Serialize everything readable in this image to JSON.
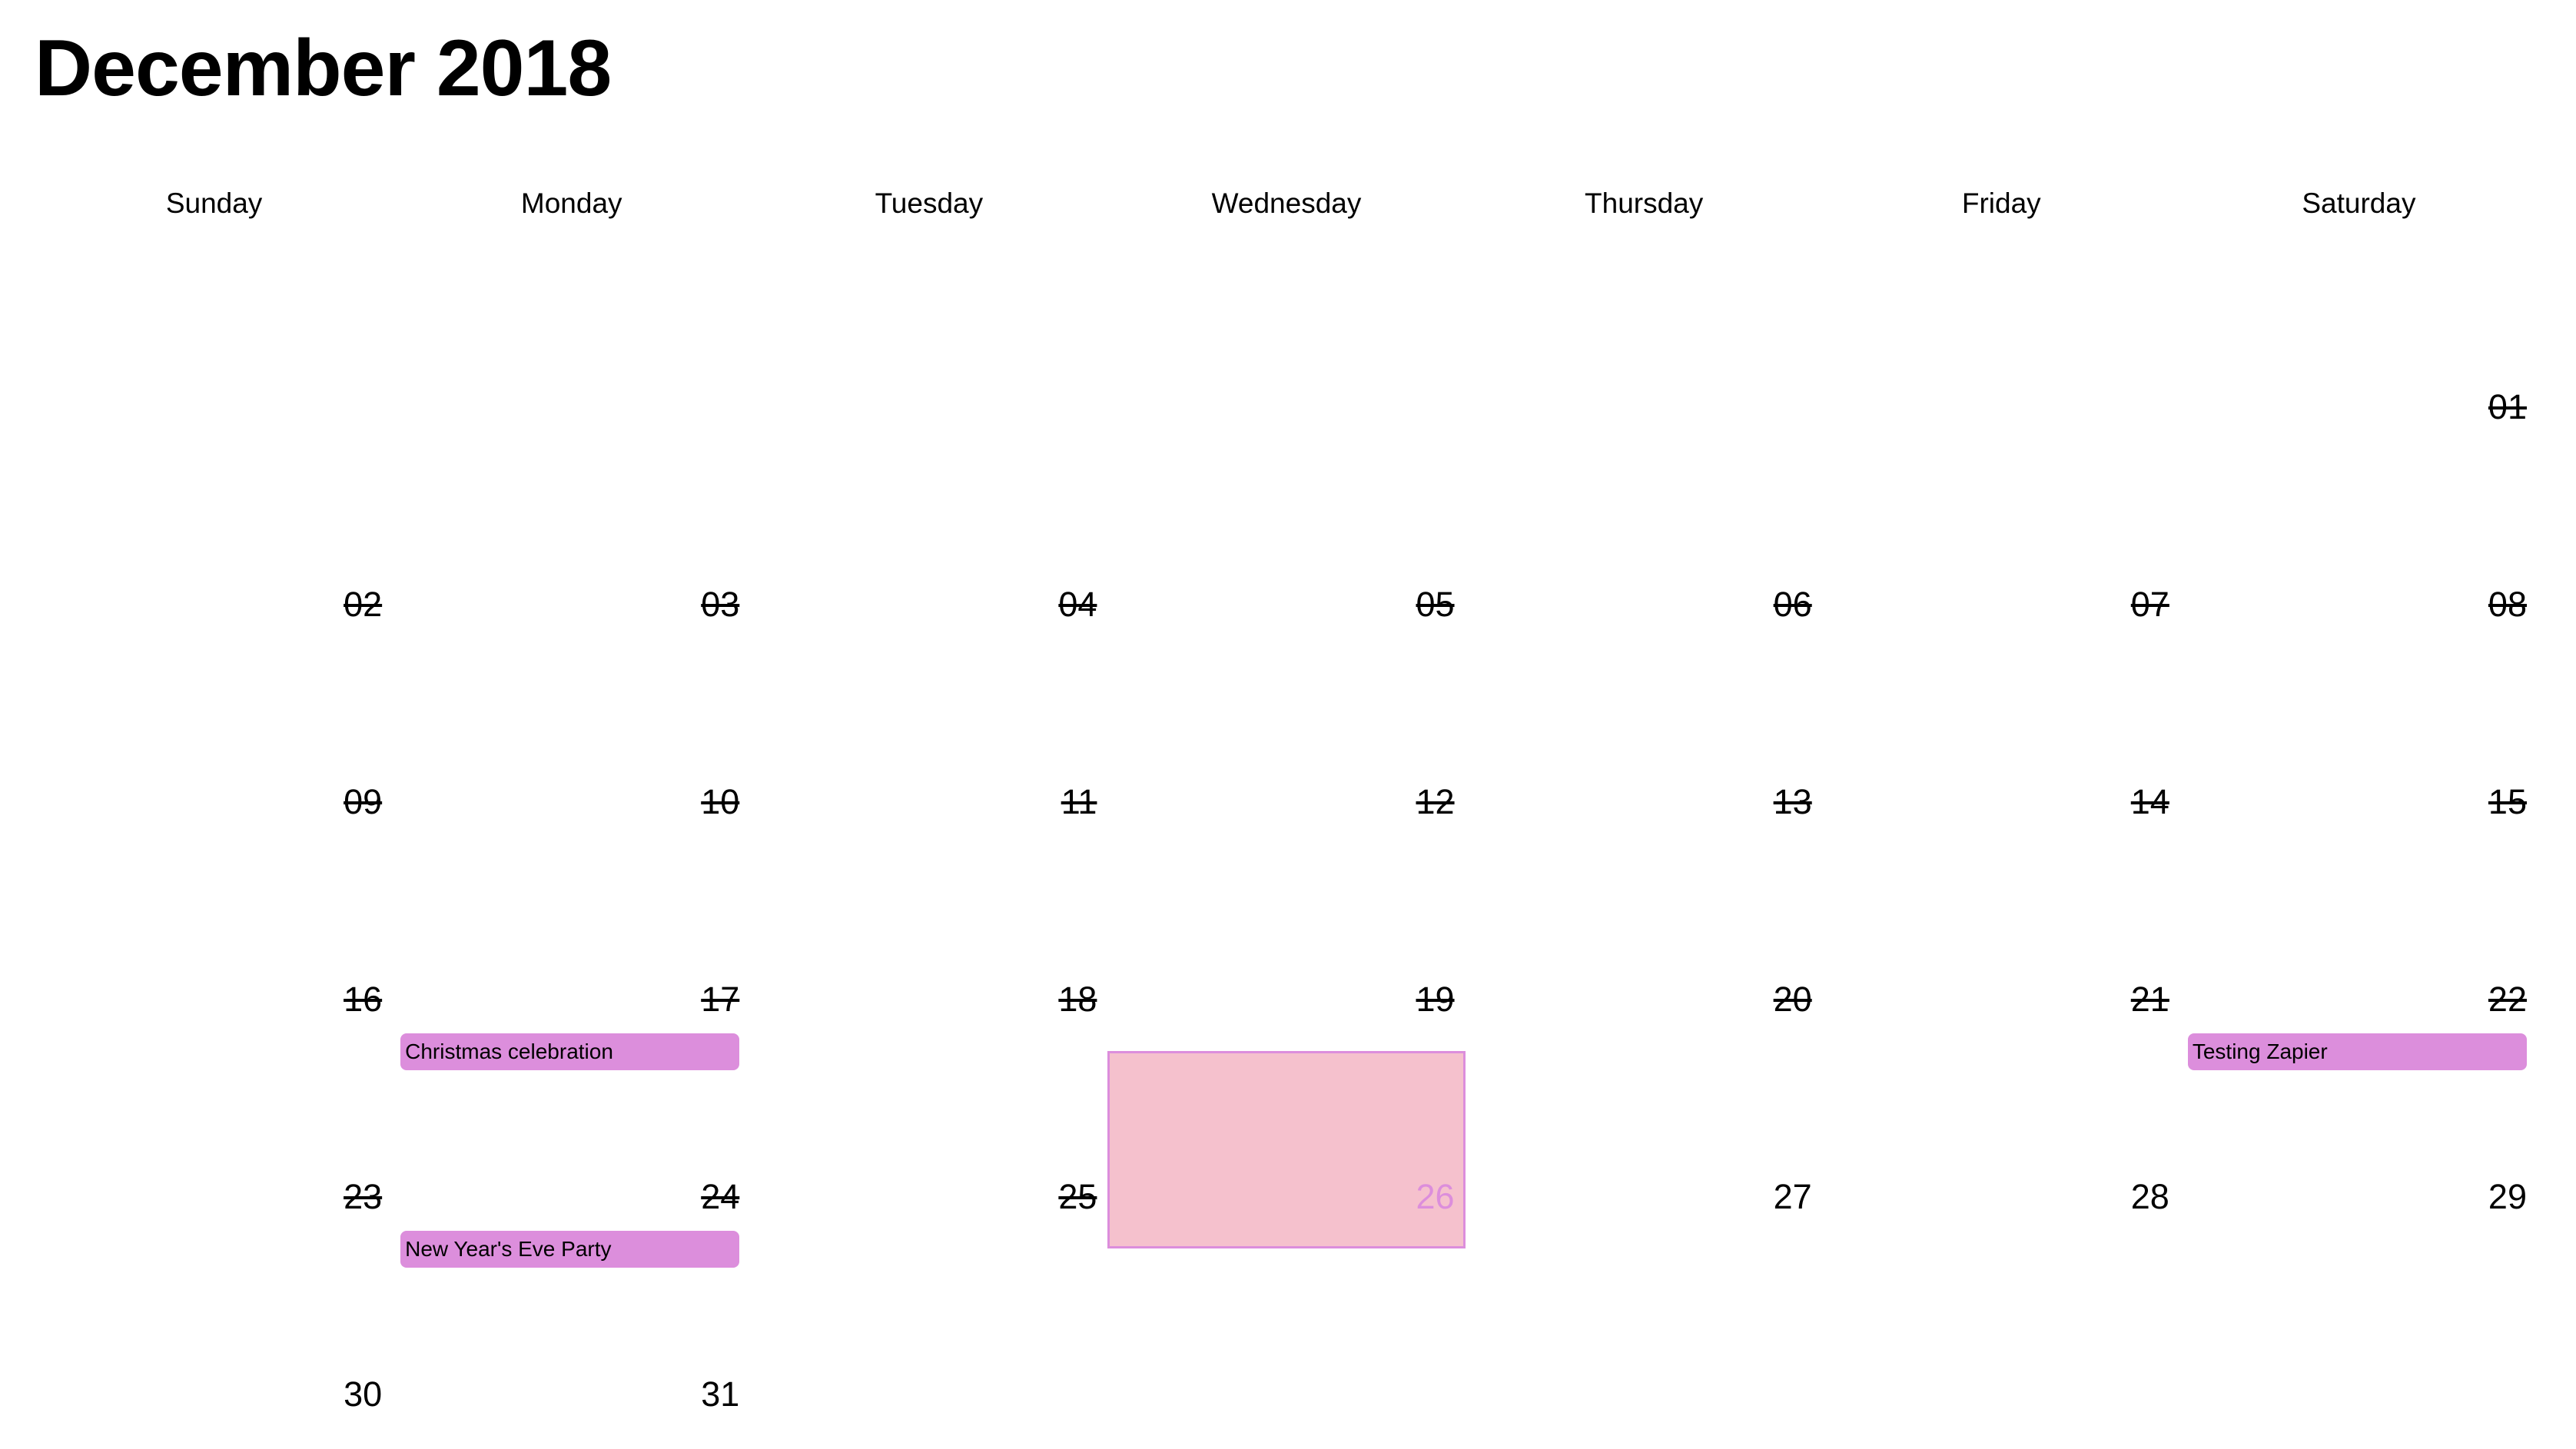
{
  "calendar": {
    "title": "December 2018",
    "weekdays": [
      "Sunday",
      "Monday",
      "Tuesday",
      "Wednesday",
      "Thursday",
      "Friday",
      "Saturday"
    ],
    "weeks": [
      [
        null,
        null,
        null,
        null,
        null,
        null,
        {
          "day": "01",
          "past": true
        }
      ],
      [
        {
          "day": "02",
          "past": true
        },
        {
          "day": "03",
          "past": true
        },
        {
          "day": "04",
          "past": true
        },
        {
          "day": "05",
          "past": true
        },
        {
          "day": "06",
          "past": true
        },
        {
          "day": "07",
          "past": true
        },
        {
          "day": "08",
          "past": true
        }
      ],
      [
        {
          "day": "09",
          "past": true
        },
        {
          "day": "10",
          "past": true
        },
        {
          "day": "11",
          "past": true
        },
        {
          "day": "12",
          "past": true
        },
        {
          "day": "13",
          "past": true
        },
        {
          "day": "14",
          "past": true
        },
        {
          "day": "15",
          "past": true
        }
      ],
      [
        {
          "day": "16",
          "past": true
        },
        {
          "day": "17",
          "past": true,
          "event": "Christmas celebration"
        },
        {
          "day": "18",
          "past": true
        },
        {
          "day": "19",
          "past": true
        },
        {
          "day": "20",
          "past": true
        },
        {
          "day": "21",
          "past": true
        },
        {
          "day": "22",
          "past": true,
          "event": "Testing Zapier"
        }
      ],
      [
        {
          "day": "23",
          "past": true
        },
        {
          "day": "24",
          "past": true,
          "event": "New Year's Eve Party"
        },
        {
          "day": "25",
          "past": true
        },
        {
          "day": "26",
          "today": true
        },
        {
          "day": "27"
        },
        {
          "day": "28"
        },
        {
          "day": "29"
        }
      ],
      [
        {
          "day": "30"
        },
        {
          "day": "31"
        },
        null,
        null,
        null,
        null,
        null
      ]
    ]
  },
  "colors": {
    "event": "#dc8edc",
    "today_fill": "#f5c1cd",
    "today_border": "#dc8edc"
  }
}
